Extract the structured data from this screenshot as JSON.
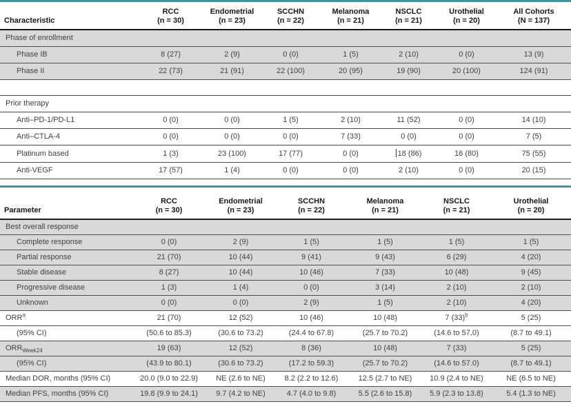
{
  "colors": {
    "accent_teal": "#45969b",
    "row_shade": "#d9d9d9",
    "row_rule": "#4d4d4d",
    "header_rule": "#1a1a1a",
    "text": "#3f3f3f"
  },
  "table1": {
    "label_header": "Characteristic",
    "columns": [
      {
        "name": "RCC",
        "n": "(n = 30)"
      },
      {
        "name": "Endometrial",
        "n": "(n = 23)"
      },
      {
        "name": "SCCHN",
        "n": "(n = 22)"
      },
      {
        "name": "Melanoma",
        "n": "(n = 21)"
      },
      {
        "name": "NSCLC",
        "n": "(n = 21)"
      },
      {
        "name": "Urothelial",
        "n": "(n = 20)"
      },
      {
        "name": "All Cohorts",
        "n": "(N = 137)"
      }
    ],
    "rows": [
      {
        "type": "section",
        "label": "Phase of enrollment",
        "shaded": true
      },
      {
        "label": "Phase IB",
        "indent": true,
        "shaded": true,
        "cells": [
          "8 (27)",
          "2 (9)",
          "0 (0)",
          "1 (5)",
          "2 (10)",
          "0 (0)",
          "13 (9)"
        ]
      },
      {
        "label": "Phase II",
        "indent": true,
        "shaded": true,
        "cells": [
          "22 (73)",
          "21 (91)",
          "22 (100)",
          "20 (95)",
          "19 (90)",
          "20 (100)",
          "124 (91)"
        ]
      },
      {
        "type": "spacer"
      },
      {
        "type": "section",
        "label": "Prior therapy",
        "shaded": false
      },
      {
        "label": "Anti–PD-1/PD-L1",
        "indent": true,
        "cells": [
          "0 (0)",
          "0 (0)",
          "1 (5)",
          "2 (10)",
          "11 (52)",
          "0 (0)",
          "14 (10)"
        ]
      },
      {
        "label": "Anti–CTLA-4",
        "indent": true,
        "cells": [
          "0 (0)",
          "0 (0)",
          "0 (0)",
          "7 (33)",
          "0 (0)",
          "0 (0)",
          "7 (5)"
        ]
      },
      {
        "label": "Platinum based",
        "indent": true,
        "cells": [
          "1 (3)",
          "23 (100)",
          "17 (77)",
          "0 (0)",
          {
            "t": "18 (86)",
            "caret": true
          },
          "16 (80)",
          "75 (55)"
        ]
      },
      {
        "label": "Anti-VEGF",
        "indent": true,
        "cells": [
          "17 (57)",
          "1 (4)",
          "0 (0)",
          "0 (0)",
          "2 (10)",
          "0 (0)",
          "20 (15)"
        ]
      }
    ]
  },
  "table2": {
    "label_header": "Parameter",
    "columns": [
      {
        "name": "RCC",
        "n": "(n = 30)"
      },
      {
        "name": "Endometrial",
        "n": "(n = 23)"
      },
      {
        "name": "SCCHN",
        "n": "(n = 22)"
      },
      {
        "name": "Melanoma",
        "n": "(n = 21)"
      },
      {
        "name": "NSCLC",
        "n": "(n = 21)"
      },
      {
        "name": "Urothelial",
        "n": "(n = 20)"
      }
    ],
    "rows": [
      {
        "type": "section",
        "label": "Best overall response",
        "shaded": true
      },
      {
        "label": "Complete response",
        "indent": true,
        "shaded": true,
        "cells": [
          "0 (0)",
          "2 (9)",
          "1 (5)",
          "1 (5)",
          "1 (5)",
          "1 (5)"
        ]
      },
      {
        "label": "Partial response",
        "indent": true,
        "shaded": true,
        "cells": [
          "21 (70)",
          "10 (44)",
          "9 (41)",
          "9 (43)",
          "6 (29)",
          "4 (20)"
        ]
      },
      {
        "label": "Stable disease",
        "indent": true,
        "shaded": true,
        "cells": [
          "8 (27)",
          "10 (44)",
          "10 (46)",
          "7 (33)",
          "10 (48)",
          "9 (45)"
        ]
      },
      {
        "label": "Progressive disease",
        "indent": true,
        "shaded": true,
        "cells": [
          "1 (3)",
          "1 (4)",
          "0 (0)",
          "3 (14)",
          "2 (10)",
          "2 (10)"
        ]
      },
      {
        "label": "Unknown",
        "indent": true,
        "shaded": true,
        "cells": [
          "0 (0)",
          "0 (0)",
          "2 (9)",
          "1 (5)",
          "2 (10)",
          "4 (20)"
        ]
      },
      {
        "label": {
          "t": "ORR",
          "sup": "a"
        },
        "cells": [
          "21 (70)",
          "12 (52)",
          "10 (46)",
          "10 (48)",
          {
            "t": "7 (33)",
            "sup": "b"
          },
          "5 (25)"
        ]
      },
      {
        "label": "(95% CI)",
        "indent": true,
        "cells": [
          "(50.6 to 85.3)",
          "(30.6 to 73.2)",
          "(24.4 to 67.8)",
          "(25.7 to 70.2)",
          "(14.6 to 57.0)",
          "(8.7 to 49.1)"
        ]
      },
      {
        "label": {
          "t": "ORR",
          "sub": "Week24"
        },
        "shaded": true,
        "cells": [
          "19 (63)",
          "12 (52)",
          "8 (36)",
          "10 (48)",
          "7 (33)",
          "5 (25)"
        ]
      },
      {
        "label": "(95% CI)",
        "indent": true,
        "shaded": true,
        "cells": [
          "(43.9 to 80.1)",
          "(30.6 to 73.2)",
          "(17.2 to 59.3)",
          "(25.7 to 70.2)",
          "(14.6 to 57.0)",
          "(8.7 to 49.1)"
        ]
      },
      {
        "label": "Median DOR, months (95% CI)",
        "cells": [
          "20.0 (9.0 to 22.9)",
          "NE (2.6 to NE)",
          "8.2 (2.2 to 12.6)",
          "12.5 (2.7 to NE)",
          "10.9 (2.4 to NE)",
          "NE (6.5 to NE)"
        ]
      },
      {
        "label": "Median PFS, months (95% CI)",
        "shaded": true,
        "cells": [
          "19.8 (9.9 to 24.1)",
          "9.7 (4.2 to NE)",
          "4.7 (4.0 to 9.8)",
          "5.5 (2.6 to 15.8)",
          "5.9 (2.3 to 13.8)",
          "5.4 (1.3 to NE)"
        ]
      }
    ]
  }
}
